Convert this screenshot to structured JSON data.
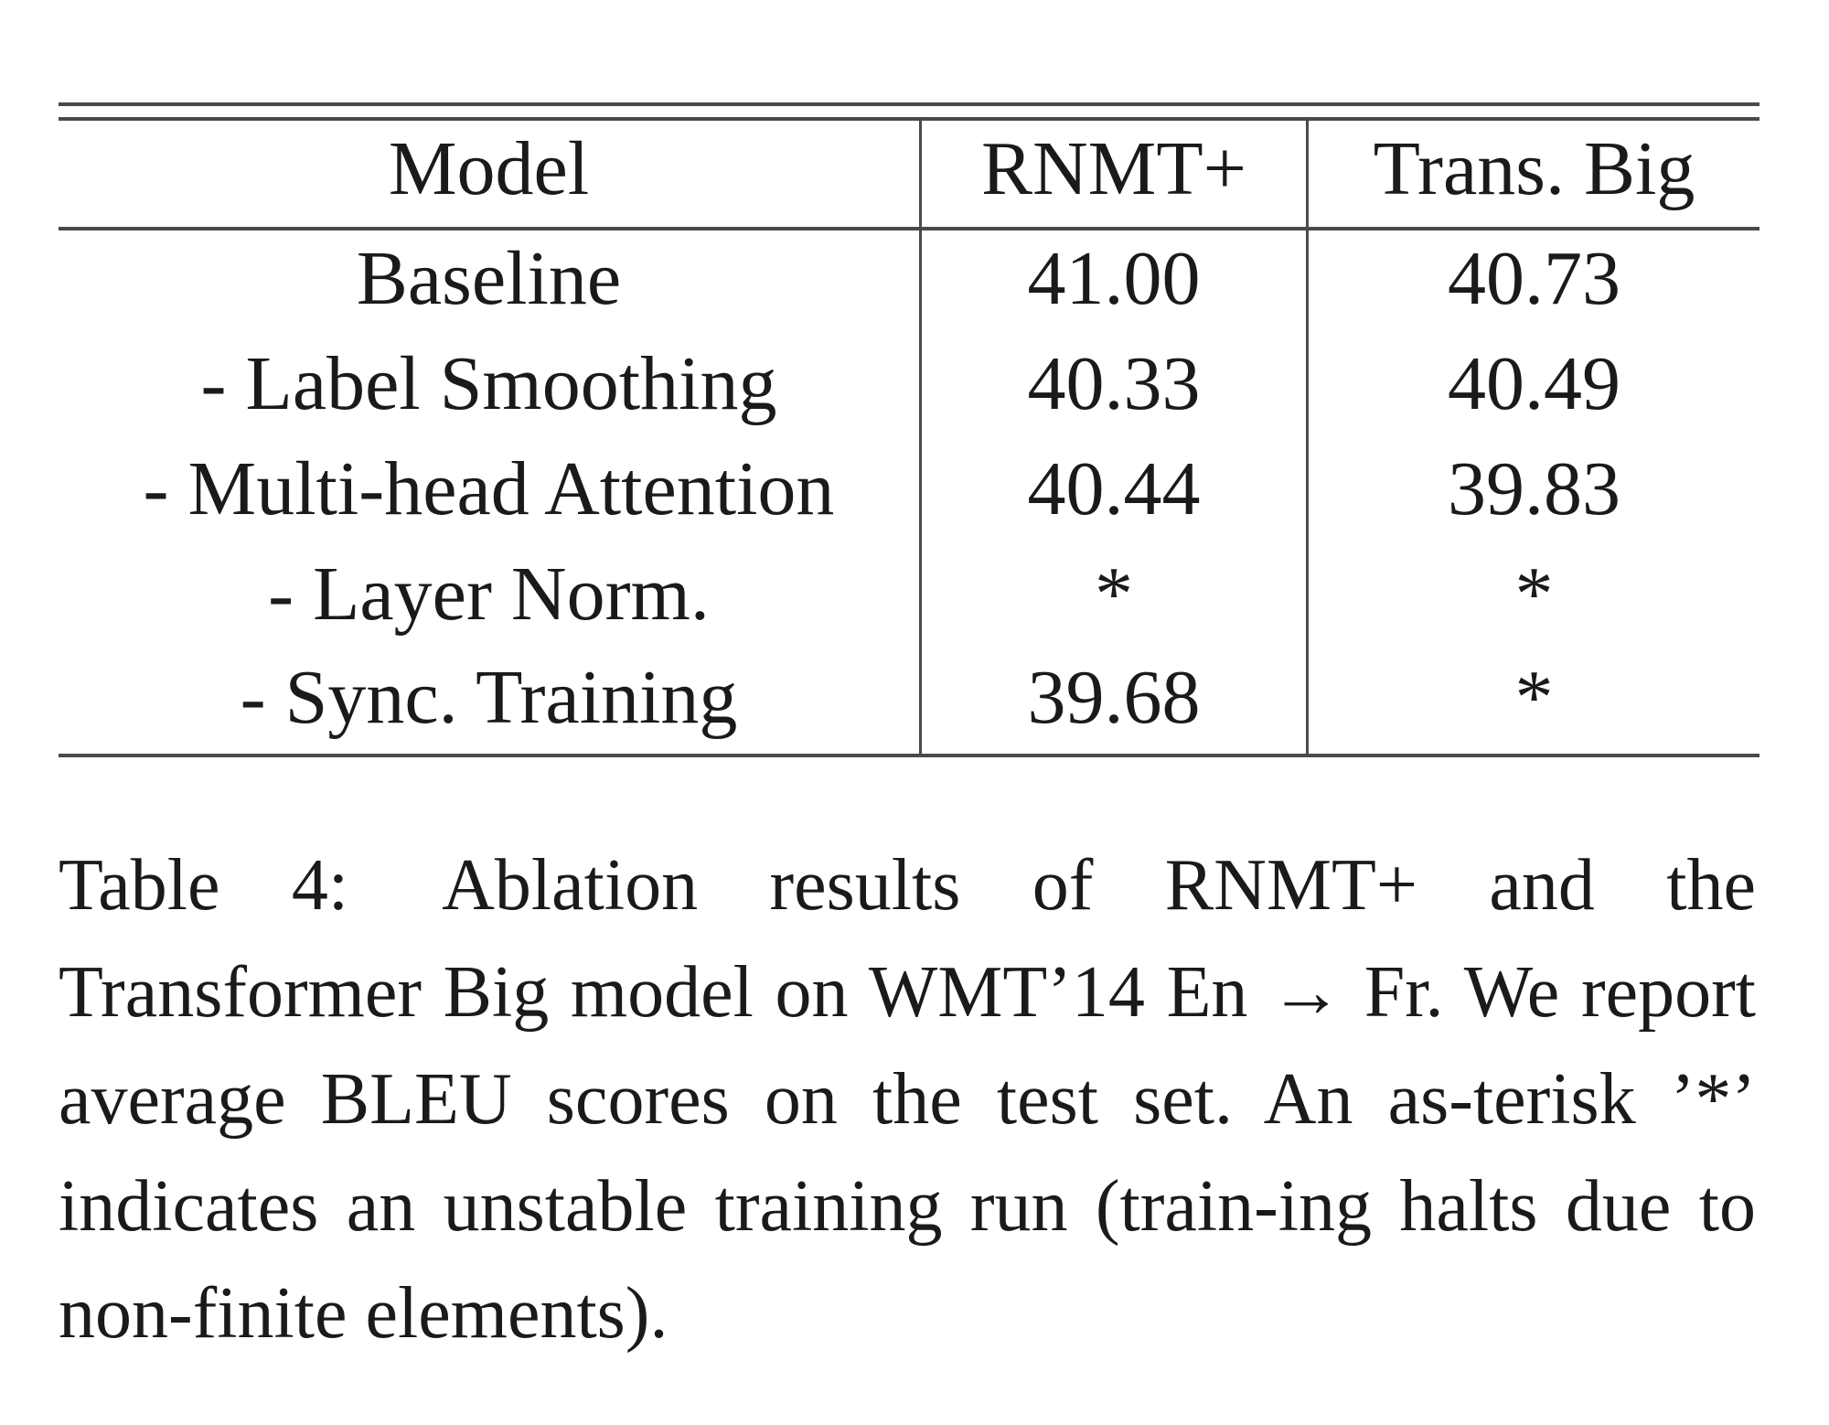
{
  "table": {
    "headers": [
      "Model",
      "RNMT+",
      "Trans. Big"
    ],
    "rows": [
      [
        "Baseline",
        "41.00",
        "40.73"
      ],
      [
        "- Label Smoothing",
        "40.33",
        "40.49"
      ],
      [
        "- Multi-head Attention",
        "40.44",
        "39.83"
      ],
      [
        "- Layer Norm.",
        "*",
        "*"
      ],
      [
        "- Sync. Training",
        "39.68",
        "*"
      ]
    ]
  },
  "caption": {
    "label": "Table 4:",
    "text": "Ablation results of RNMT+ and the Transformer Big model on WMT’14 En → Fr. We report average BLEU scores on the test set. An as-terisk ’*’ indicates an unstable training run (train-ing halts due to non-finite elements)."
  }
}
